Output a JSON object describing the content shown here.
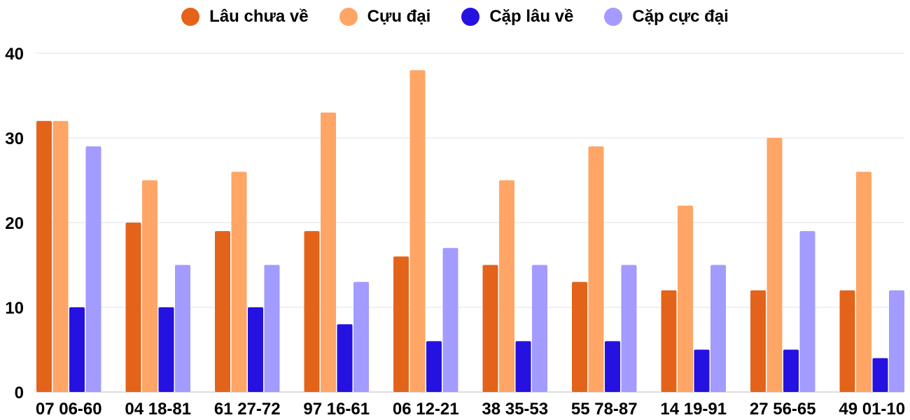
{
  "chart_data": {
    "type": "bar",
    "title": "",
    "xlabel": "",
    "ylabel": "",
    "ylim": [
      0,
      40
    ],
    "yticks": [
      0,
      10,
      20,
      30,
      40
    ],
    "grid": true,
    "legend_position": "top",
    "categories": [
      "07 06-60",
      "04 18-81",
      "61 27-72",
      "97 16-61",
      "06 12-21",
      "38 35-53",
      "55 78-87",
      "14 19-91",
      "27 56-65",
      "49 01-10"
    ],
    "series": [
      {
        "name": "Lâu chưa về",
        "color": "#E4631A",
        "values": [
          32,
          20,
          19,
          19,
          16,
          15,
          13,
          12,
          12,
          12
        ]
      },
      {
        "name": "Cựu đại",
        "color": "#FFA566",
        "values": [
          32,
          25,
          26,
          33,
          38,
          25,
          29,
          22,
          30,
          26
        ]
      },
      {
        "name": "Cặp lâu về",
        "color": "#2512E0",
        "values": [
          10,
          10,
          10,
          8,
          6,
          6,
          6,
          5,
          5,
          4
        ]
      },
      {
        "name": "Cặp cực đại",
        "color": "#A39BFF",
        "values": [
          29,
          15,
          15,
          13,
          17,
          15,
          15,
          15,
          19,
          12
        ]
      }
    ]
  }
}
